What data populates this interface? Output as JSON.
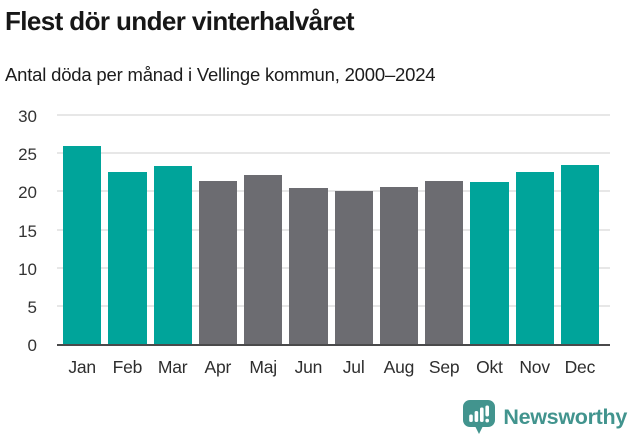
{
  "header": {
    "title": "Flest dör under vinterhalvåret",
    "subtitle": "Antal döda per månad i Vellinge kommun, 2000–2024"
  },
  "chart_data": {
    "type": "bar",
    "title": "Flest dör under vinterhalvåret",
    "subtitle": "Antal döda per månad i Vellinge kommun, 2000–2024",
    "categories": [
      "Jan",
      "Feb",
      "Mar",
      "Apr",
      "Maj",
      "Jun",
      "Jul",
      "Aug",
      "Sep",
      "Okt",
      "Nov",
      "Dec"
    ],
    "values": [
      25.9,
      22.6,
      23.3,
      21.4,
      22.2,
      20.4,
      20.1,
      20.6,
      21.3,
      21.2,
      22.6,
      23.4
    ],
    "highlighted": [
      true,
      true,
      true,
      false,
      false,
      false,
      false,
      false,
      false,
      true,
      true,
      true
    ],
    "xlabel": "",
    "ylabel": "",
    "ylim": [
      0,
      30
    ],
    "yticks": [
      0,
      5,
      10,
      15,
      20,
      25,
      30
    ],
    "grid": true,
    "legend": "none",
    "colors": {
      "highlight": "#00a49a",
      "base": "#6c6c71",
      "gridline": "#e7e7e7",
      "axis": "#4a4a4b",
      "tick_text": "#333333"
    }
  },
  "footer": {
    "brand": "Newsworthy",
    "brand_color": "#42948e",
    "logo_icon": "bar-chart-speech-bubble-icon"
  }
}
